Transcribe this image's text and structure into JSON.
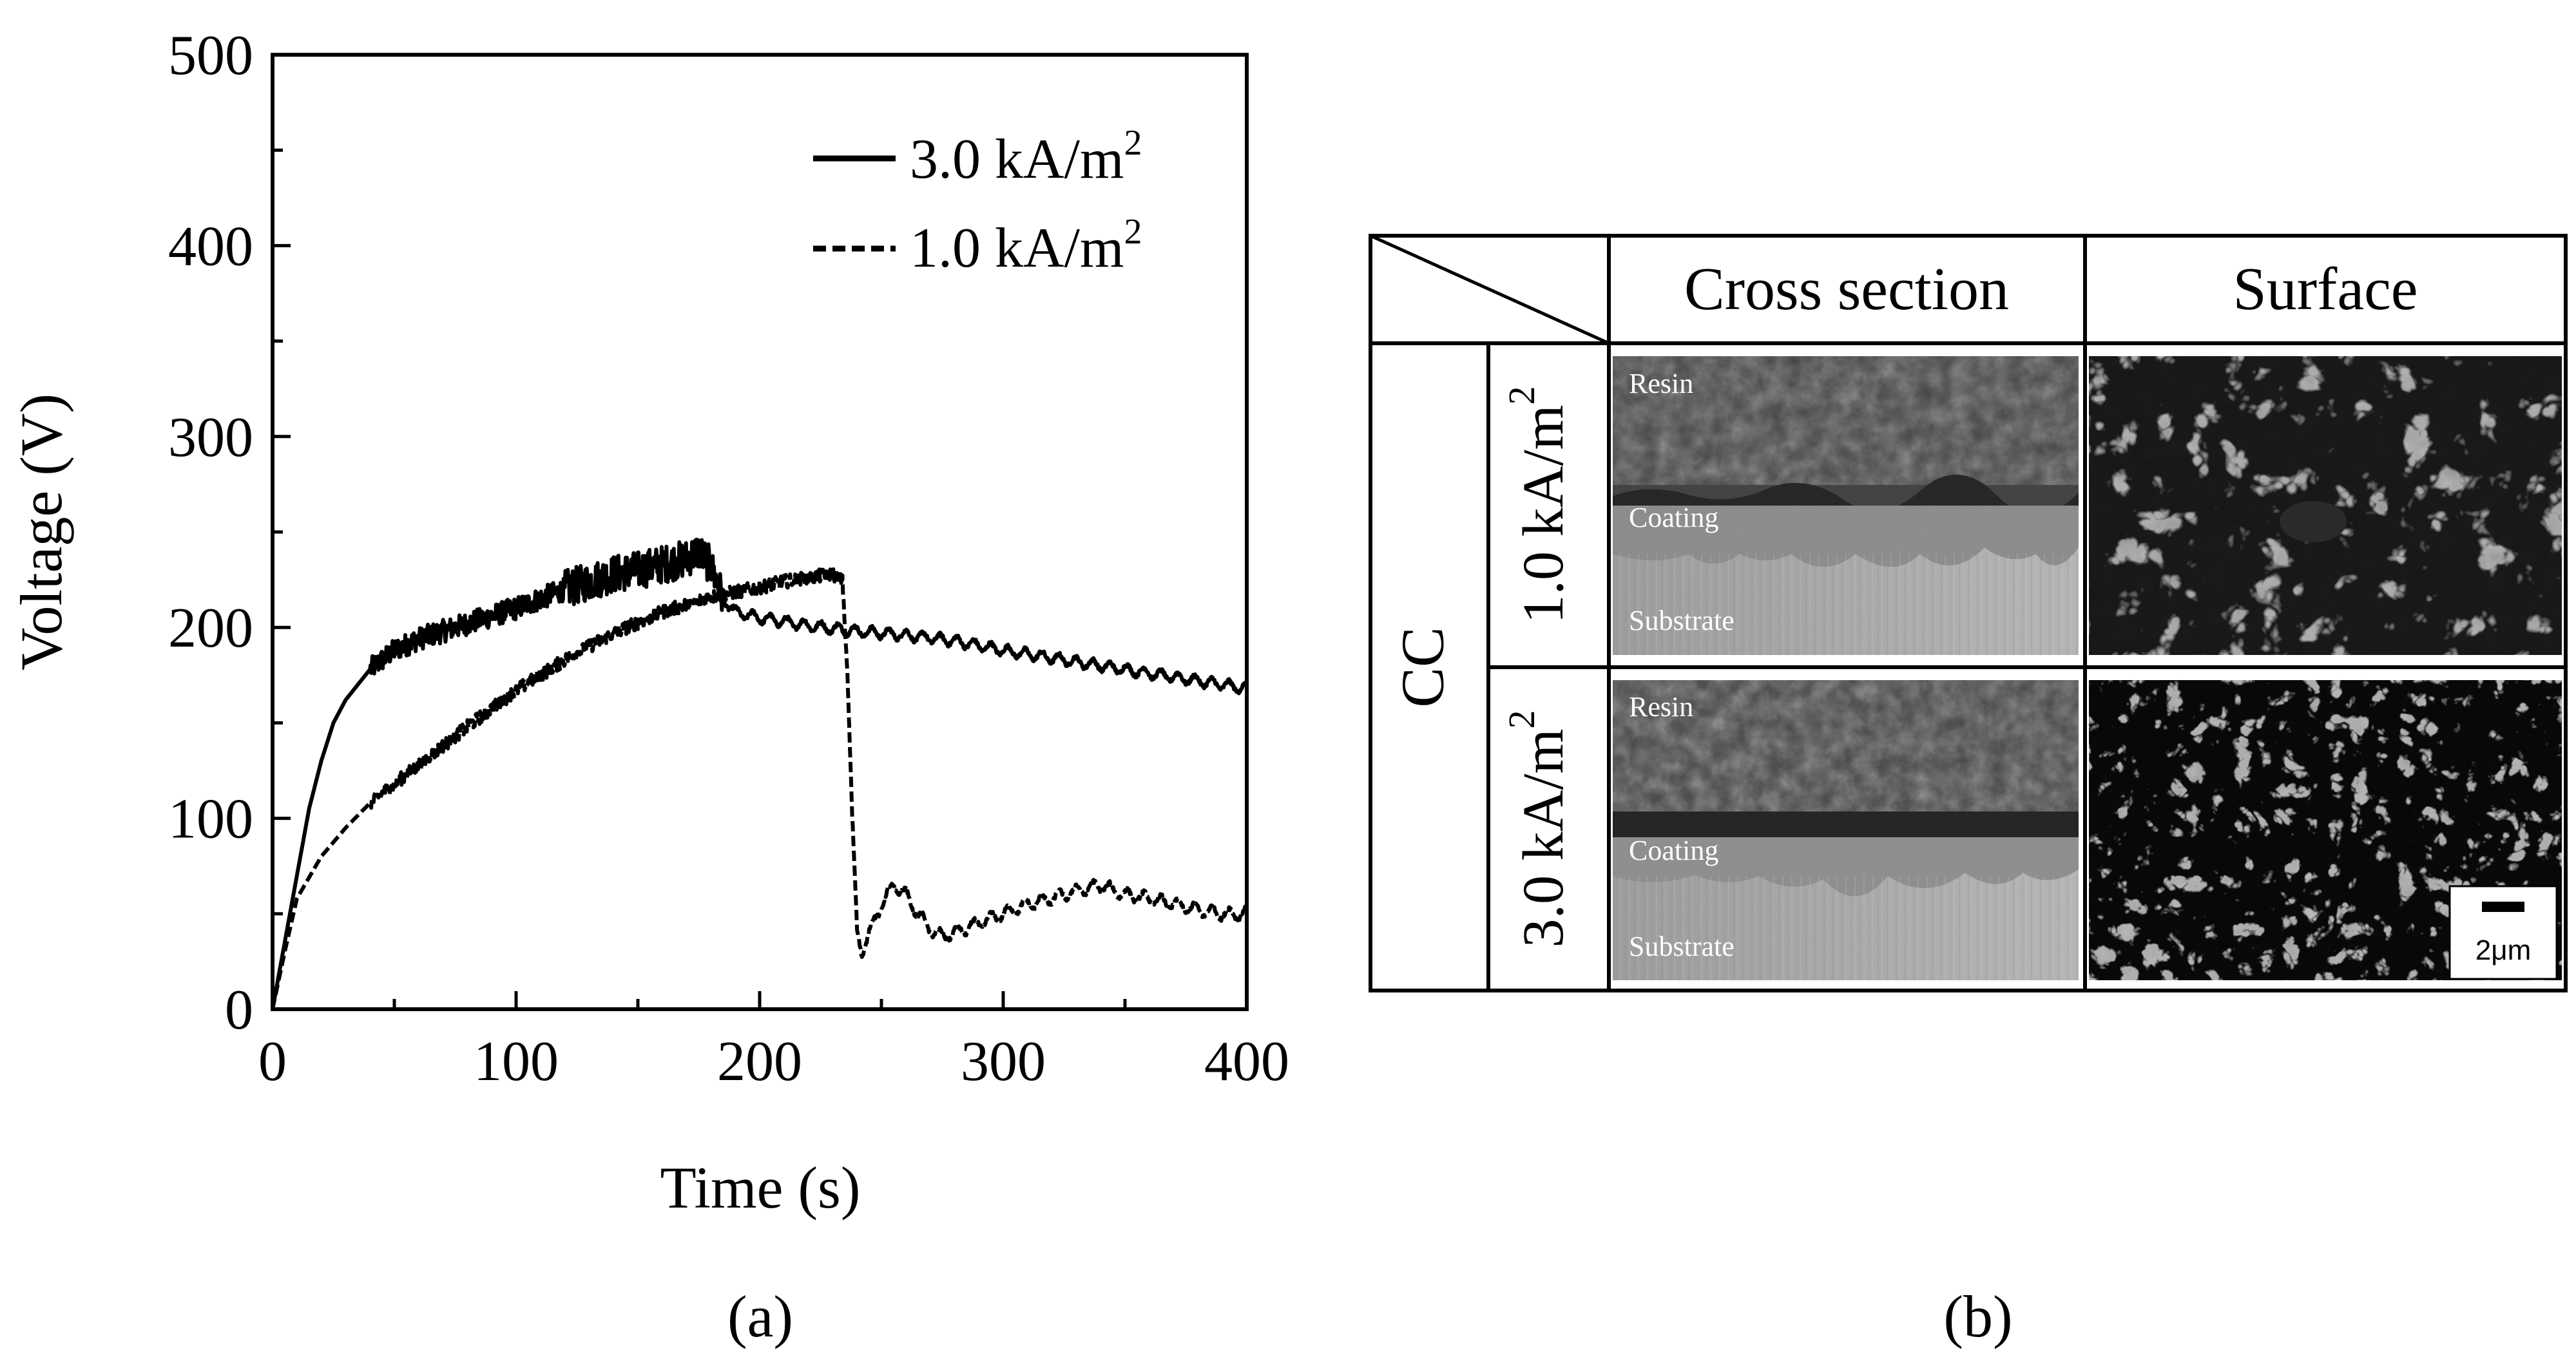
{
  "chart_data": {
    "type": "line",
    "xlabel": "Time (s)",
    "ylabel": "Voltage (V)",
    "xlim": [
      0,
      400
    ],
    "ylim": [
      0,
      500
    ],
    "x_ticks": [
      "0",
      "100",
      "200",
      "300",
      "400"
    ],
    "y_ticks": [
      "0",
      "100",
      "200",
      "300",
      "400",
      "500"
    ],
    "grid": false,
    "legend_position": "top-right",
    "series": [
      {
        "name": "3.0 kA/m2",
        "legend_base": "3.0 kA/m",
        "legend_sup": "2",
        "style": "solid",
        "x": [
          0,
          5,
          10,
          15,
          20,
          25,
          30,
          40,
          50,
          60,
          70,
          80,
          90,
          100,
          110,
          120,
          130,
          140,
          150,
          160,
          170,
          175,
          180,
          185,
          190,
          200,
          220,
          240,
          260,
          280,
          300,
          320,
          340,
          360,
          380,
          400
        ],
        "y": [
          0,
          35,
          70,
          105,
          130,
          150,
          162,
          178,
          188,
          194,
          198,
          202,
          206,
          210,
          215,
          220,
          224,
          228,
          230,
          233,
          236,
          240,
          232,
          215,
          208,
          205,
          201,
          198,
          196,
          193,
          188,
          184,
          180,
          176,
          172,
          168
        ],
        "noise_until_x": 185
      },
      {
        "name": "1.0 kA/m2",
        "legend_base": "1.0 kA/m",
        "legend_sup": "2",
        "style": "dashed",
        "x": [
          0,
          5,
          10,
          20,
          30,
          40,
          50,
          60,
          80,
          100,
          120,
          140,
          160,
          180,
          200,
          210,
          220,
          230,
          234,
          236,
          238,
          240,
          242,
          245,
          250,
          255,
          260,
          265,
          270,
          275,
          280,
          290,
          300,
          310,
          320,
          330,
          340,
          350,
          360,
          370,
          380,
          390,
          400
        ],
        "y": [
          0,
          30,
          58,
          80,
          95,
          108,
          118,
          128,
          148,
          167,
          183,
          197,
          208,
          216,
          221,
          224,
          226,
          228,
          224,
          180,
          100,
          40,
          30,
          40,
          55,
          65,
          60,
          50,
          42,
          38,
          40,
          45,
          50,
          55,
          58,
          62,
          65,
          60,
          58,
          55,
          52,
          50,
          50
        ],
        "noise_until_x": 235
      }
    ]
  },
  "panel_a_label": "(a)",
  "panel_b_label": "(b)",
  "table": {
    "col_headers": [
      "Cross section",
      "Surface"
    ],
    "group_label": "CC",
    "rows": [
      {
        "label": "1.0 kA/m",
        "label_sup": "2",
        "labels": [
          "Resin",
          "Coating",
          "Substrate"
        ]
      },
      {
        "label": "3.0 kA/m",
        "label_sup": "2",
        "labels": [
          "Resin",
          "Coating",
          "Substrate"
        ]
      }
    ],
    "scale_bar": "2μm"
  }
}
